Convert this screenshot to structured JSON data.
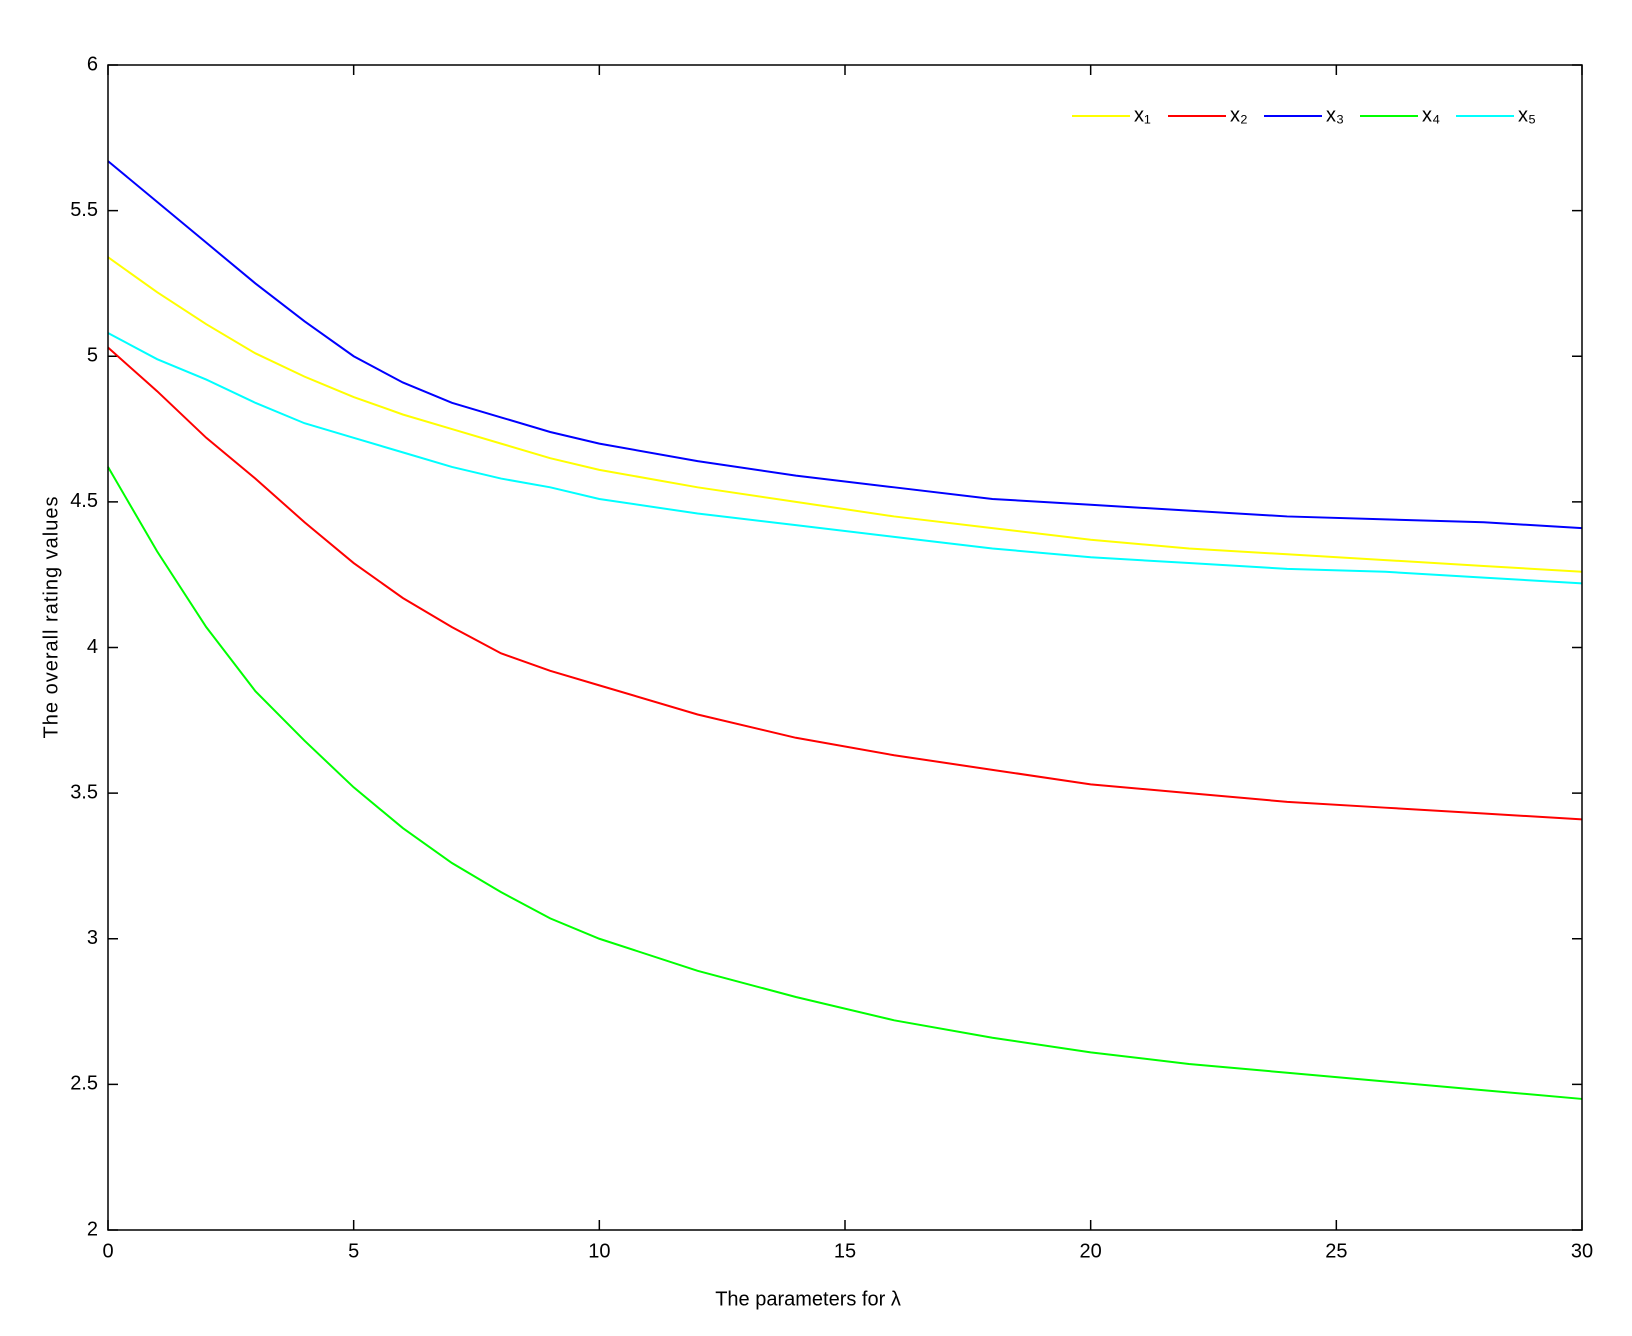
{
  "chart_data": {
    "type": "line",
    "xlabel": "The parameters for λ",
    "ylabel": "The overall rating values",
    "x": [
      0,
      1,
      2,
      3,
      4,
      5,
      6,
      7,
      8,
      9,
      10,
      12,
      14,
      16,
      18,
      20,
      22,
      24,
      26,
      28,
      30
    ],
    "series": [
      {
        "name": "x₁",
        "color": "#ffff00",
        "values": [
          5.34,
          5.22,
          5.11,
          5.01,
          4.93,
          4.86,
          4.8,
          4.75,
          4.7,
          4.65,
          4.61,
          4.55,
          4.5,
          4.45,
          4.41,
          4.37,
          4.34,
          4.32,
          4.3,
          4.28,
          4.26
        ]
      },
      {
        "name": "x₂",
        "color": "#ff0000",
        "values": [
          5.03,
          4.88,
          4.72,
          4.58,
          4.43,
          4.29,
          4.17,
          4.07,
          3.98,
          3.92,
          3.87,
          3.77,
          3.69,
          3.63,
          3.58,
          3.53,
          3.5,
          3.47,
          3.45,
          3.43,
          3.41
        ]
      },
      {
        "name": "x₃",
        "color": "#0000ff",
        "values": [
          5.67,
          5.53,
          5.39,
          5.25,
          5.12,
          5.0,
          4.91,
          4.84,
          4.79,
          4.74,
          4.7,
          4.64,
          4.59,
          4.55,
          4.51,
          4.49,
          4.47,
          4.45,
          4.44,
          4.43,
          4.41
        ]
      },
      {
        "name": "x₄",
        "color": "#00ff00",
        "values": [
          4.62,
          4.33,
          4.07,
          3.85,
          3.68,
          3.52,
          3.38,
          3.26,
          3.16,
          3.07,
          3.0,
          2.89,
          2.8,
          2.72,
          2.66,
          2.61,
          2.57,
          2.54,
          2.51,
          2.48,
          2.45
        ]
      },
      {
        "name": "x₅",
        "color": "#00ffff",
        "values": [
          5.08,
          4.99,
          4.92,
          4.84,
          4.77,
          4.72,
          4.67,
          4.62,
          4.58,
          4.55,
          4.51,
          4.46,
          4.42,
          4.38,
          4.34,
          4.31,
          4.29,
          4.27,
          4.26,
          4.24,
          4.22
        ]
      }
    ],
    "xlim": [
      0,
      30
    ],
    "xticks": [
      0,
      5,
      10,
      15,
      20,
      25,
      30
    ],
    "ylim": [
      2,
      6
    ],
    "yticks": [
      2,
      2.5,
      3,
      3.5,
      4,
      4.5,
      5,
      5.5,
      6
    ],
    "grid": false,
    "legend": "top-right"
  }
}
